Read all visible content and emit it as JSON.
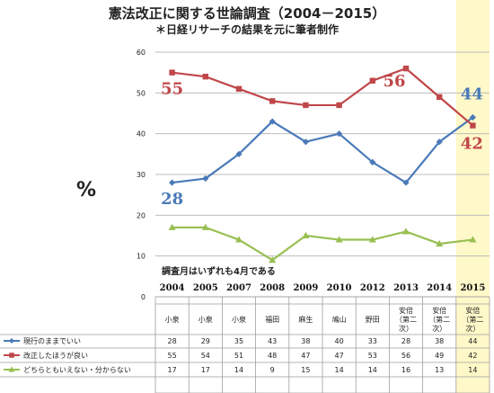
{
  "chart_data": {
    "type": "line",
    "title": "憲法改正に関する世論調査（2004－2015）",
    "subtitle": "＊日経リサーチの結果を元に筆者制作",
    "ylabel": "%",
    "ylim": [
      0,
      60
    ],
    "yticks": [
      0,
      10,
      20,
      30,
      40,
      50,
      60
    ],
    "note": "調査月はいずれも4月である",
    "categories": [
      "2004",
      "2005",
      "2007",
      "2008",
      "2009",
      "2010",
      "2012",
      "2013",
      "2014",
      "2015"
    ],
    "prime_ministers": [
      "小泉",
      "小泉",
      "小泉",
      "福田",
      "麻生",
      "鳩山",
      "野田",
      "安倍（第二次）",
      "安倍（第二次）",
      "安倍（第二次）"
    ],
    "highlight_category": "2015",
    "series": [
      {
        "name": "現行のままでいい",
        "color": "#4a7ab8",
        "marker": "diamond",
        "values": [
          28,
          29,
          35,
          43,
          38,
          40,
          33,
          28,
          38,
          44
        ]
      },
      {
        "name": "改正したほうが良い",
        "color": "#c0474a",
        "marker": "square",
        "values": [
          55,
          54,
          51,
          48,
          47,
          47,
          53,
          56,
          49,
          42
        ]
      },
      {
        "name": "どちらともいえない・分からない",
        "color": "#98bf52",
        "marker": "triangle",
        "values": [
          17,
          17,
          14,
          9,
          15,
          14,
          14,
          16,
          13,
          14
        ]
      }
    ],
    "annotations": [
      {
        "text": "55",
        "series": 1,
        "index": 0
      },
      {
        "text": "28",
        "series": 0,
        "index": 0
      },
      {
        "text": "56",
        "series": 1,
        "index": 7
      },
      {
        "text": "44",
        "series": 0,
        "index": 9
      },
      {
        "text": "42",
        "series": 1,
        "index": 9
      }
    ],
    "grid": true,
    "legend": "table-bottom"
  }
}
